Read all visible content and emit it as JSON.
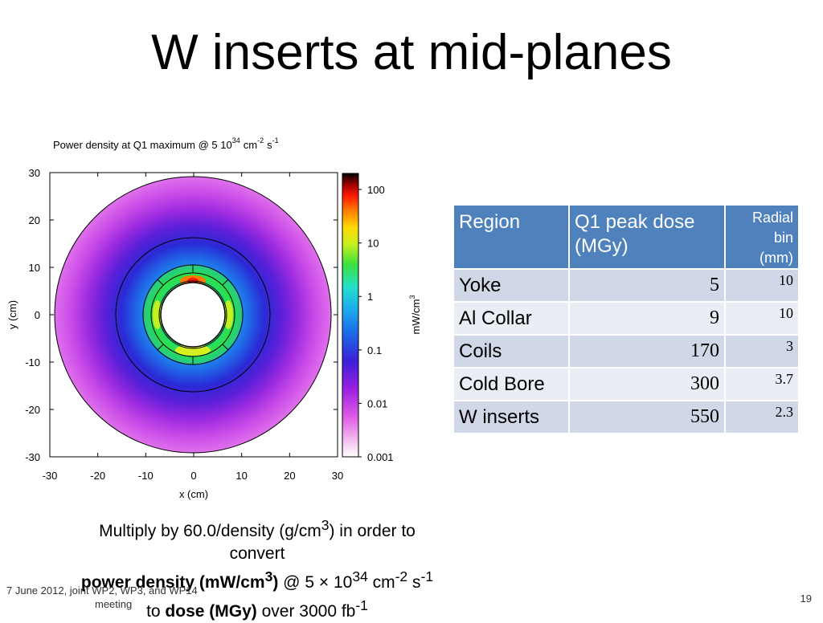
{
  "slide": {
    "title": "W inserts at mid-planes",
    "page_number": "19",
    "footer_line1": "7 June 2012, joint WP2, WP3, and WP14",
    "footer_line2": "meeting"
  },
  "figure": {
    "title_main": "Power density at Q1 maximum @ 5 10",
    "title_exp": "34",
    "title_unit": "cm",
    "title_unit_exp": "-2",
    "title_s": "s",
    "title_s_exp": "-1",
    "xlabel": "x (cm)",
    "ylabel": "y (cm)",
    "colorbar_label": "mW/cm",
    "colorbar_label_exp": "3",
    "x_ticks": [
      "-30",
      "-20",
      "-10",
      "0",
      "10",
      "20",
      "30"
    ],
    "y_ticks": [
      "30",
      "20",
      "10",
      "0",
      "-10",
      "-20",
      "-30"
    ],
    "colorbar_ticks": [
      "100",
      "10",
      "1",
      "0.1",
      "0.01",
      "0.001"
    ]
  },
  "chart_data": {
    "type": "heatmap",
    "title": "Power density at Q1 maximum @ 5 10^34 cm^-2 s^-1",
    "xlabel": "x (cm)",
    "ylabel": "y (cm)",
    "xlim": [
      -30,
      30
    ],
    "ylim": [
      -30,
      30
    ],
    "colorbar": {
      "label": "mW/cm^3",
      "scale": "log",
      "range": [
        0.001,
        200
      ],
      "ticks": [
        100,
        10,
        1,
        0.1,
        0.01,
        0.001
      ]
    },
    "grid": false
  },
  "table": {
    "headers": {
      "region": "Region",
      "dose": "Q1 peak dose (MGy)",
      "radial_1": "Radial",
      "radial_2": "bin",
      "radial_3": "(mm)"
    },
    "rows": [
      {
        "region": "Yoke",
        "dose": "5",
        "bin": "10"
      },
      {
        "region": "Al Collar",
        "dose": "9",
        "bin": "10"
      },
      {
        "region": "Coils",
        "dose": "170",
        "bin": "3"
      },
      {
        "region": "Cold Bore",
        "dose": "300",
        "bin": "3.7"
      },
      {
        "region": "W inserts",
        "dose": "550",
        "bin": "2.3"
      }
    ]
  },
  "note": {
    "line1_a": "Multiply by 60.0/density (g/cm",
    "line1_exp": "3",
    "line1_b": ") in order to",
    "line2": "convert",
    "line3_bold": "power density (mW/cm",
    "line3_bold_exp": "3",
    "line3_bold_end": ")",
    "line3_rest": " @ 5 × 10",
    "line3_exp": "34",
    "line3_cm": " cm",
    "line3_cm_exp": "-2",
    "line3_s": " s",
    "line3_s_exp": "-1",
    "line4_a": "to ",
    "line4_bold": "dose (MGy)",
    "line4_b": " over 3000 fb",
    "line4_exp": "-1"
  },
  "colors": {
    "table_header": "#4f81bd",
    "table_row_odd": "#d0d8e8",
    "table_row_even": "#e9edf4"
  }
}
